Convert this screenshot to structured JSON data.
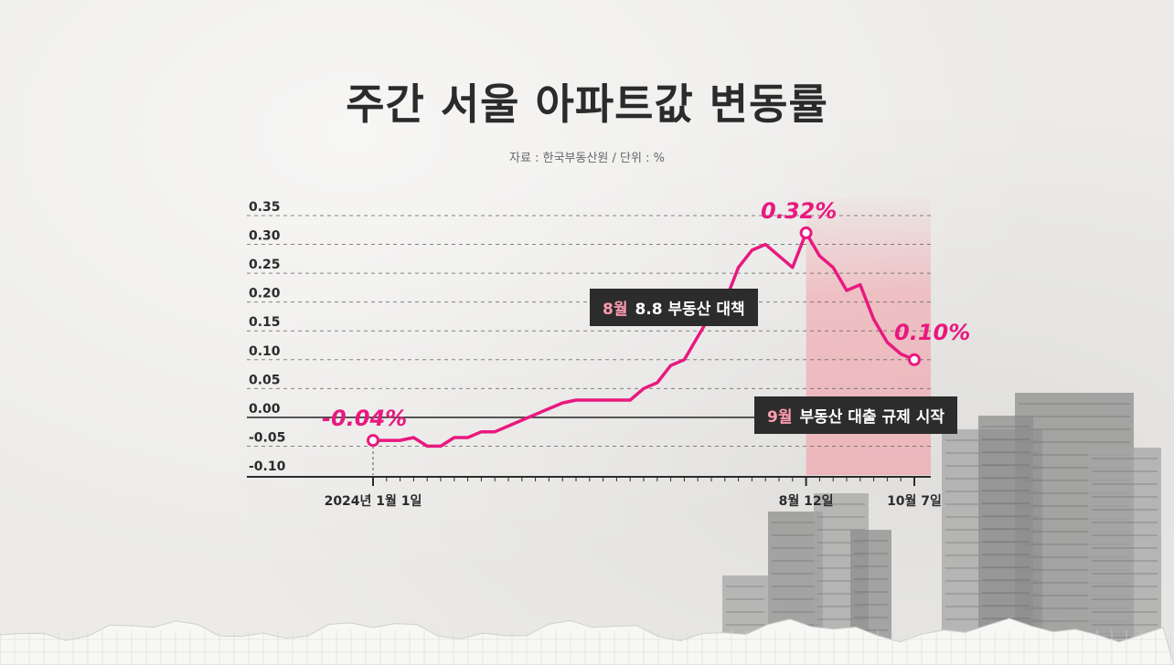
{
  "title": "주간 서울 아파트값 변동률",
  "subtitle": "자료 : 한국부동산원 / 단위 : %",
  "colors": {
    "line": "#e8197f",
    "highlight_band": "#f2a0a8",
    "annotation_bg": "#2c2c2c",
    "annotation_highlight": "#ff9db0",
    "axis": "#2b2b2b"
  },
  "annotations": {
    "aug_policy": {
      "highlight": "8월",
      "text": "8.8 부동산 대책"
    },
    "sep_regulation": {
      "highlight": "9월",
      "text": "부동산 대출 규제 시작"
    },
    "start_value": "-0.04%",
    "peak_value": "0.32%",
    "end_value": "0.10%"
  },
  "chart_data": {
    "type": "line",
    "title": "주간 서울 아파트값 변동률",
    "subtitle": "자료 : 한국부동산원 / 단위 : %",
    "ylim": [
      -0.1,
      0.35
    ],
    "y_ticks": [
      "0.35",
      "0.30",
      "0.25",
      "0.20",
      "0.15",
      "0.10",
      "0.05",
      "0.00",
      "-0.05",
      "-0.10"
    ],
    "grid": true,
    "x_tick_labels": [
      {
        "week_index": 0,
        "label": "2024년 1월 1일"
      },
      {
        "week_index": 32,
        "label": "8월 12일"
      },
      {
        "week_index": 40,
        "label": "10월 7일"
      }
    ],
    "highlight_period": {
      "from_week_index": 32,
      "to_week_index": 40
    },
    "series": [
      {
        "values": [
          -0.04,
          -0.04,
          -0.04,
          -0.035,
          -0.05,
          -0.05,
          -0.035,
          -0.035,
          -0.025,
          -0.025,
          -0.015,
          -0.005,
          0.005,
          0.015,
          0.025,
          0.03,
          0.03,
          0.03,
          0.03,
          0.03,
          0.05,
          0.06,
          0.09,
          0.1,
          0.14,
          0.18,
          0.2,
          0.26,
          0.29,
          0.3,
          0.28,
          0.26,
          0.32,
          0.28,
          0.26,
          0.22,
          0.23,
          0.17,
          0.13,
          0.11,
          0.1
        ]
      }
    ]
  }
}
